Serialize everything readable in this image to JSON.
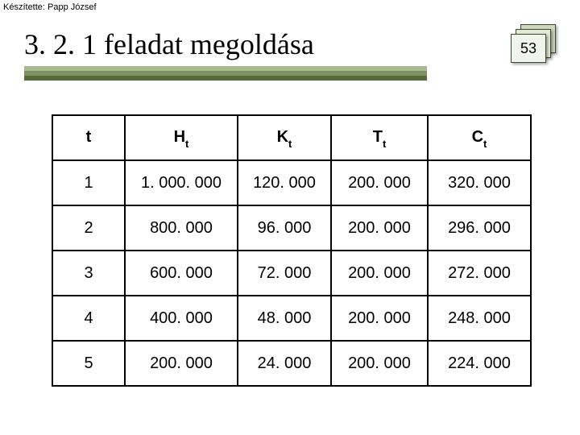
{
  "author_line": "Készítette: Papp József",
  "title": "3. 2. 1 feladat megoldása",
  "page_number": "53",
  "underline_colors": [
    "#a9b98e",
    "#7e9261",
    "#556b3a"
  ],
  "pagebox": {
    "back_color": "#cdd7bd",
    "mid_color": "#e3e9d8",
    "front_color": "#f0f4ea",
    "border_color": "#3a4a2a"
  },
  "table": {
    "columns": [
      {
        "letter": "t",
        "sub": ""
      },
      {
        "letter": "H",
        "sub": "t"
      },
      {
        "letter": "K",
        "sub": "t"
      },
      {
        "letter": "T",
        "sub": "t"
      },
      {
        "letter": "C",
        "sub": "t"
      }
    ],
    "rows": [
      [
        "1",
        "1. 000. 000",
        "120. 000",
        "200. 000",
        "320. 000"
      ],
      [
        "2",
        "800. 000",
        "96. 000",
        "200. 000",
        "296. 000"
      ],
      [
        "3",
        "600. 000",
        "72. 000",
        "200. 000",
        "272. 000"
      ],
      [
        "4",
        "400. 000",
        "48. 000",
        "200. 000",
        "248. 000"
      ],
      [
        "5",
        "200. 000",
        "24. 000",
        "200. 000",
        "224. 000"
      ]
    ],
    "border_color": "#000000",
    "cell_font_size": 20
  }
}
